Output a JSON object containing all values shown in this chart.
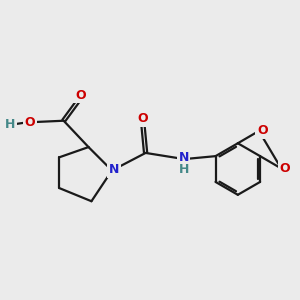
{
  "background_color": "#ebebeb",
  "bond_color": "#1a1a1a",
  "bond_width": 1.6,
  "atom_colors": {
    "O": "#cc0000",
    "N": "#2222cc",
    "H": "#448888",
    "C": "#1a1a1a"
  },
  "bg": "#ebebeb"
}
